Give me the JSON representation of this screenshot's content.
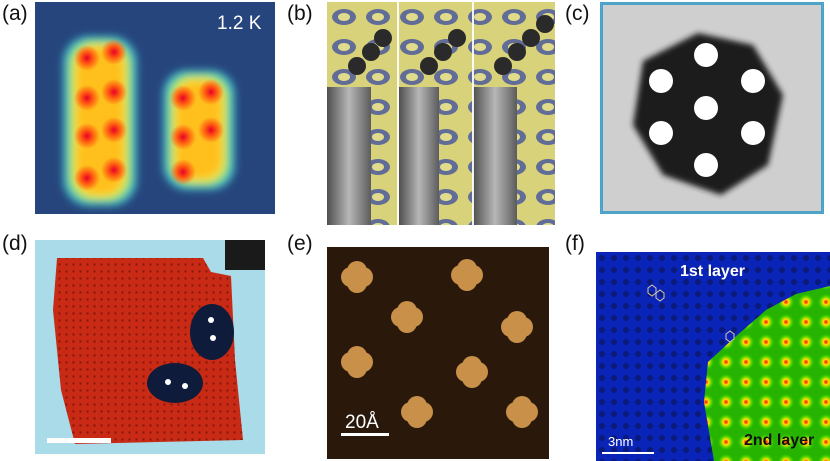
{
  "panels": [
    {
      "label": "(a)",
      "overlay": "1.2 K"
    },
    {
      "label": "(b)"
    },
    {
      "label": "(c)"
    },
    {
      "label": "(d)"
    },
    {
      "label": "(e)",
      "scalebar": "20Å"
    },
    {
      "label": "(f)",
      "layer1": "1st layer",
      "layer2": "2nd layer",
      "scalebar": "3nm"
    }
  ]
}
